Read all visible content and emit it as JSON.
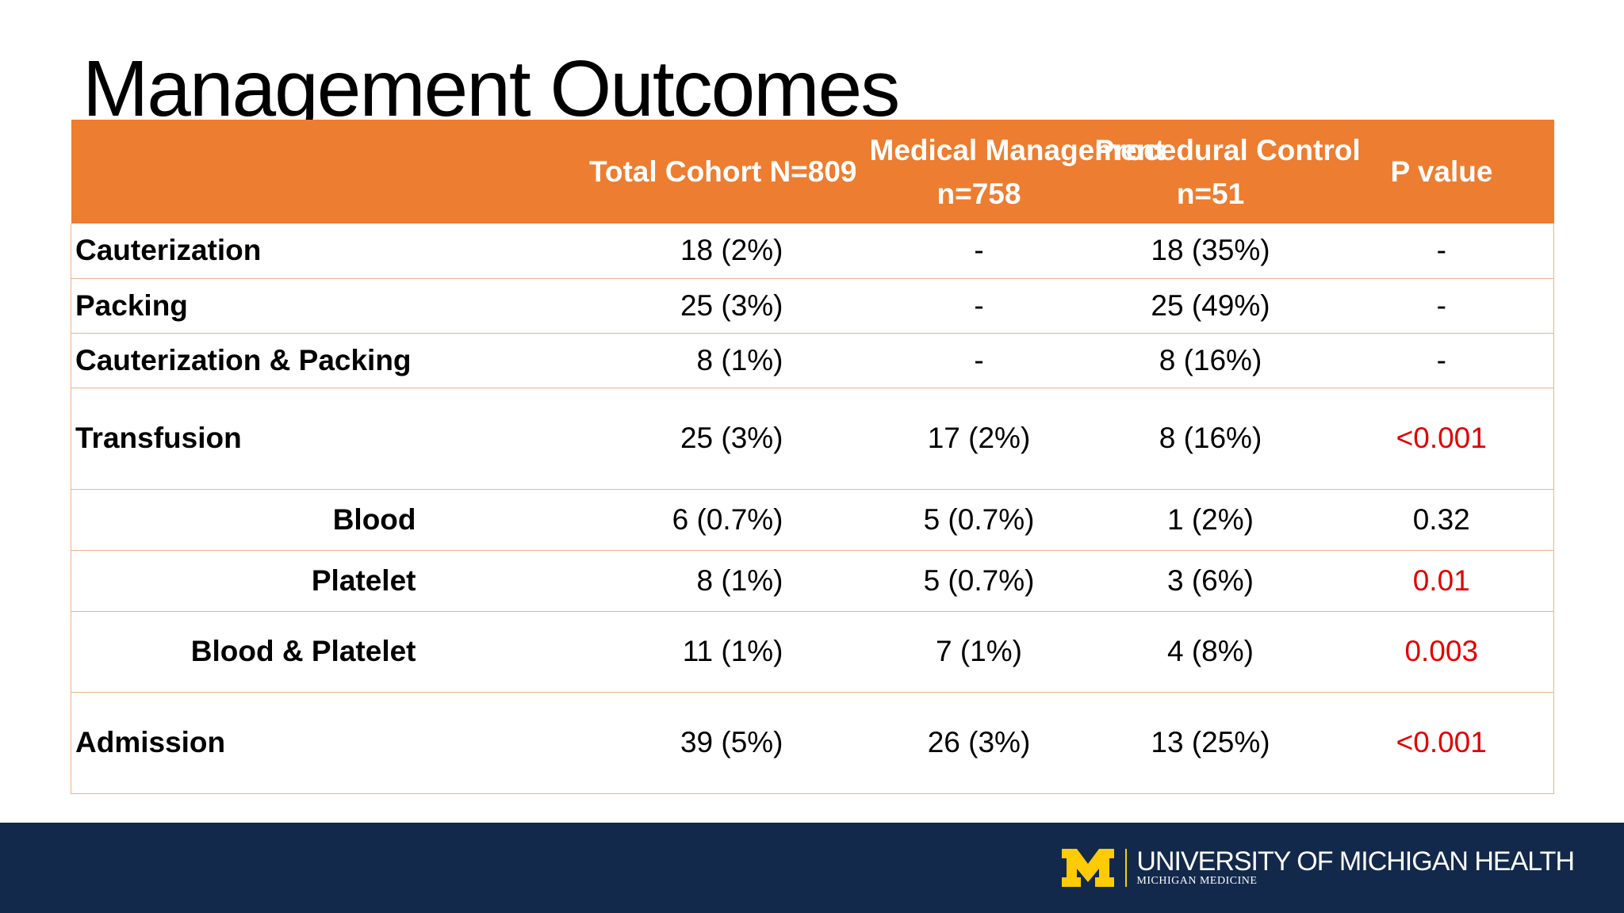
{
  "slide": {
    "title": "Management Outcomes"
  },
  "table": {
    "header": {
      "col1": "Total Cohort N=809",
      "col2_line1": "Medical Management",
      "col2_line2": "n=758",
      "col3_line1": "Procedural Control",
      "col3_line2": "n=51",
      "col4": "P value"
    },
    "rows": [
      {
        "label": "Cauterization",
        "total": "18 (2%)",
        "medical": "-",
        "procedural": "18 (35%)",
        "p": "-"
      },
      {
        "label": "Packing",
        "total": "25 (3%)",
        "medical": "-",
        "procedural": "25 (49%)",
        "p": "-"
      },
      {
        "label": "Cauterization & Packing",
        "total": "8 (1%)",
        "medical": "-",
        "procedural": "8 (16%)",
        "p": "-"
      },
      {
        "label": "Transfusion",
        "total": "25 (3%)",
        "medical": "17 (2%)",
        "procedural": "8 (16%)",
        "p": "<0.001"
      },
      {
        "label": "Blood",
        "total": "6 (0.7%)",
        "medical": "5 (0.7%)",
        "procedural": "1 (2%)",
        "p": "0.32"
      },
      {
        "label": "Platelet",
        "total": "8 (1%)",
        "medical": "5 (0.7%)",
        "procedural": "3 (6%)",
        "p": "0.01"
      },
      {
        "label": "Blood & Platelet",
        "total": "11 (1%)",
        "medical": "7 (1%)",
        "procedural": "4 (8%)",
        "p": "0.003"
      },
      {
        "label": "Admission",
        "total": "39 (5%)",
        "medical": "26 (3%)",
        "procedural": "13 (25%)",
        "p": "<0.001"
      }
    ]
  },
  "footer": {
    "logo_main": "UNIVERSITY OF MICHIGAN HEALTH",
    "logo_sub": "MICHIGAN MEDICINE",
    "logo_icon": "block-m-icon"
  },
  "colors": {
    "header_orange": "#ed7d31",
    "row_border": "#f4b183",
    "significant_red": "#e00000",
    "footer_navy": "#13294b",
    "maize": "#ffcb05"
  }
}
